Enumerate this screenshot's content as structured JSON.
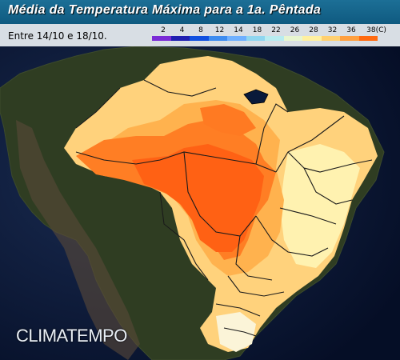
{
  "title": "Média da Temperatura Máxima para a 1a. Pêntada",
  "period": "Entre 14/10 e 18/10.",
  "legend": {
    "labels": [
      "2",
      "4",
      "8",
      "12",
      "14",
      "18",
      "22",
      "26",
      "28",
      "32",
      "36",
      "38(C)"
    ],
    "colors": [
      "#7a2bd6",
      "#1f1fb0",
      "#1050e0",
      "#3d8cf0",
      "#6fb0ff",
      "#8fd6f0",
      "#b8ecf0",
      "#e8f6d0",
      "#fff0a0",
      "#ffd070",
      "#ffa040",
      "#ff6a10"
    ]
  },
  "logo": "CLIMATEMPO",
  "colors": {
    "ocean": "#0a1a3a",
    "land": "#2b3a20",
    "t26_28": "#ffe9a6",
    "t28_32": "#ffd27c",
    "t32_36": "#ffb24e",
    "t36_38": "#ff7e24",
    "t38": "#ff6114"
  }
}
